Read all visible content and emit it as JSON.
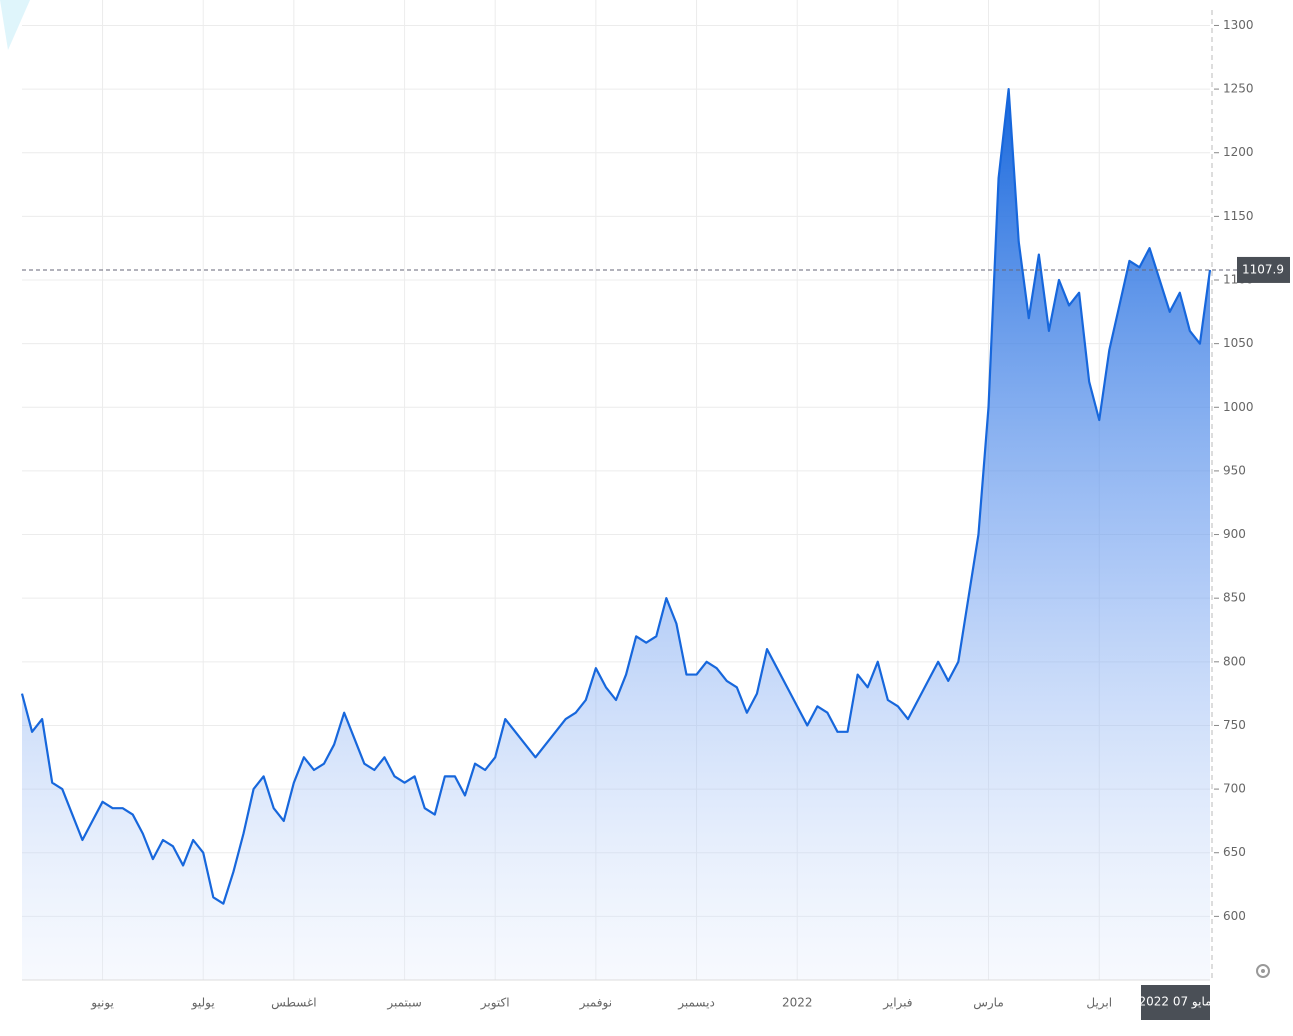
{
  "chart_data": {
    "type": "area",
    "color": "#1767dc",
    "grid": true,
    "categories": [
      null,
      null,
      null,
      null,
      null,
      null,
      null,
      null,
      "يونيو",
      null,
      null,
      null,
      null,
      null,
      null,
      null,
      null,
      null,
      "يوليو",
      null,
      null,
      null,
      null,
      null,
      null,
      null,
      null,
      "اغسطس",
      null,
      null,
      null,
      null,
      null,
      null,
      null,
      null,
      null,
      null,
      "سبتمبر",
      null,
      null,
      null,
      null,
      null,
      null,
      null,
      null,
      "اكتوبر",
      null,
      null,
      null,
      null,
      null,
      null,
      null,
      null,
      null,
      "نوفمبر",
      null,
      null,
      null,
      null,
      null,
      null,
      null,
      null,
      null,
      "ديسمبر",
      null,
      null,
      null,
      null,
      null,
      null,
      null,
      null,
      null,
      "2022",
      null,
      null,
      null,
      null,
      null,
      null,
      null,
      null,
      null,
      "فبراير",
      null,
      null,
      null,
      null,
      null,
      null,
      null,
      null,
      "مارس",
      null,
      null,
      null,
      null,
      null,
      null,
      null,
      null,
      null,
      null,
      "ابريل",
      null,
      null,
      null,
      null,
      null,
      null,
      null,
      null,
      null,
      null,
      "مايو 07 2022"
    ],
    "values": [
      775,
      745,
      755,
      705,
      700,
      680,
      660,
      675,
      690,
      685,
      685,
      680,
      665,
      645,
      660,
      655,
      640,
      660,
      650,
      615,
      610,
      635,
      665,
      700,
      710,
      685,
      675,
      705,
      725,
      715,
      720,
      735,
      760,
      740,
      720,
      715,
      725,
      710,
      705,
      710,
      685,
      680,
      710,
      710,
      695,
      720,
      715,
      725,
      755,
      745,
      735,
      725,
      735,
      745,
      755,
      760,
      770,
      795,
      780,
      770,
      790,
      820,
      815,
      820,
      850,
      830,
      790,
      790,
      800,
      795,
      785,
      780,
      760,
      775,
      810,
      795,
      780,
      765,
      750,
      765,
      760,
      745,
      745,
      790,
      780,
      800,
      770,
      765,
      755,
      770,
      785,
      800,
      785,
      800,
      850,
      900,
      1000,
      1180,
      1250,
      1130,
      1070,
      1120,
      1060,
      1100,
      1080,
      1090,
      1020,
      990,
      1045,
      1080,
      1115,
      1110,
      1125,
      1100,
      1075,
      1090,
      1060,
      1050,
      1107.9
    ],
    "current_price": 1107.9,
    "ylim": [
      550,
      1320
    ],
    "yticks": [
      600,
      650,
      700,
      750,
      800,
      850,
      900,
      950,
      1000,
      1050,
      1100,
      1150,
      1200,
      1250,
      1300
    ]
  }
}
